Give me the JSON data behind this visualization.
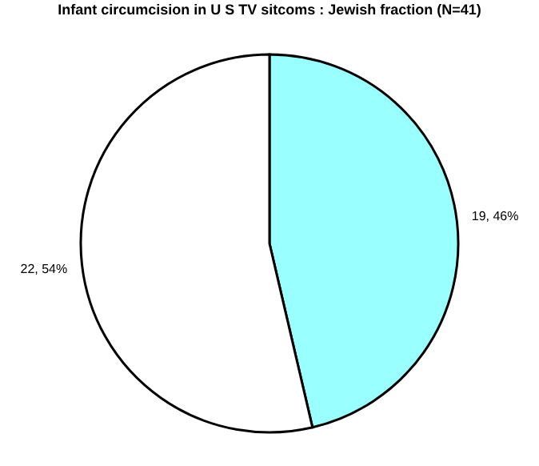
{
  "chart_data": {
    "type": "pie",
    "title": "Infant circumcision in U S TV sitcoms : Jewish fraction (N=41)",
    "categories": [
      null,
      null
    ],
    "values": [
      19,
      22
    ],
    "colors": [
      "#99ffff",
      "#ffffff"
    ],
    "value_labels": [
      "19, 46%",
      "22, 54%"
    ],
    "legend": false
  }
}
